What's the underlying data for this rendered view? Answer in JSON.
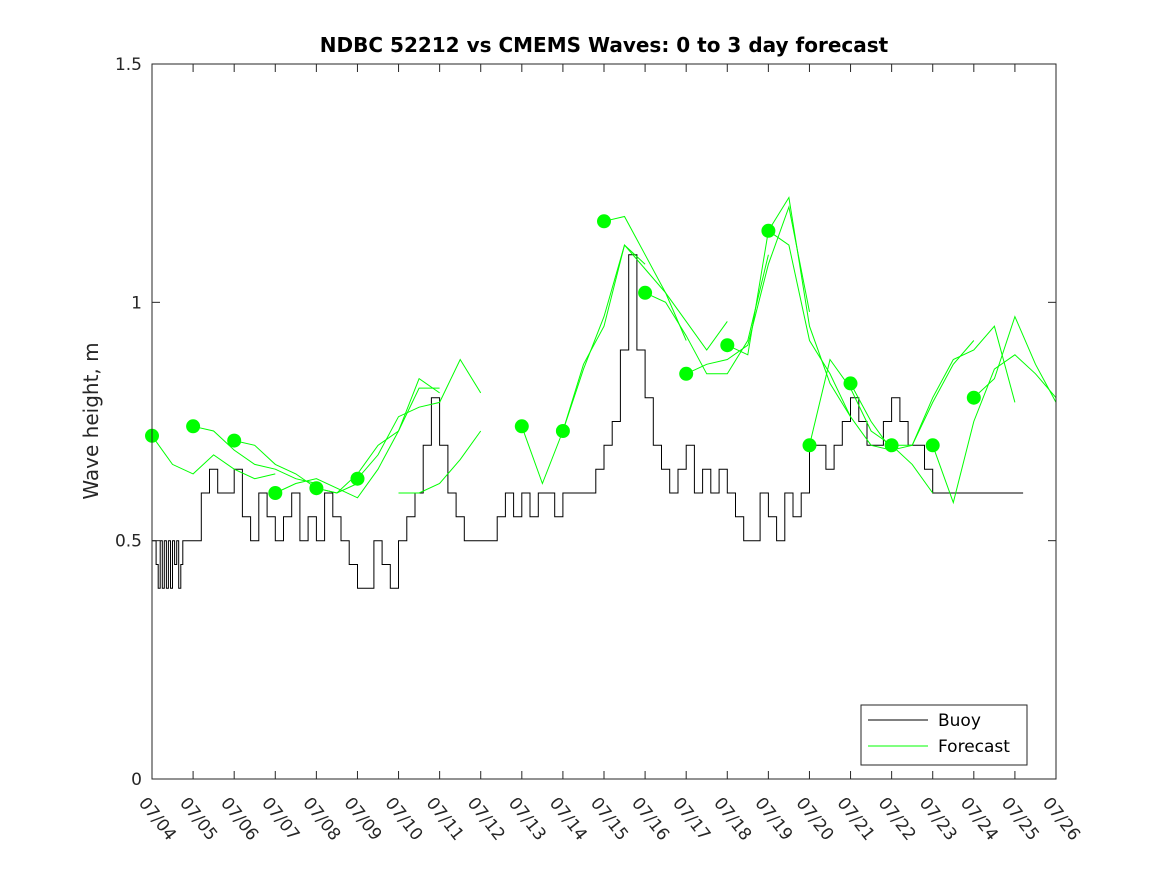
{
  "chart_data": {
    "type": "line",
    "title": "NDBC 52212 vs CMEMS Waves: 0 to 3 day forecast",
    "xlabel": "",
    "ylabel": "Wave height, m",
    "xlim": [
      "07/04",
      "07/26"
    ],
    "ylim": [
      0,
      1.5
    ],
    "x_tick_labels": [
      "07/04",
      "07/05",
      "07/06",
      "07/07",
      "07/08",
      "07/09",
      "07/10",
      "07/11",
      "07/12",
      "07/13",
      "07/14",
      "07/15",
      "07/16",
      "07/17",
      "07/18",
      "07/19",
      "07/20",
      "07/21",
      "07/22",
      "07/23",
      "07/24",
      "07/25",
      "07/26"
    ],
    "y_tick_labels": [
      "0",
      "0.5",
      "1",
      "1.5"
    ],
    "y_ticks": [
      0,
      0.5,
      1,
      1.5
    ],
    "grid": false,
    "legend_position": "bottom-right",
    "colors": {
      "buoy": "#000000",
      "forecast": "#00ff00"
    },
    "series": [
      {
        "name": "Buoy",
        "x_days": [
          0,
          0.1,
          0.15,
          0.2,
          0.25,
          0.3,
          0.35,
          0.4,
          0.45,
          0.5,
          0.55,
          0.6,
          0.65,
          0.7,
          0.75,
          0.8,
          1.0,
          1.2,
          1.4,
          1.6,
          1.8,
          2.0,
          2.2,
          2.4,
          2.6,
          2.8,
          3.0,
          3.2,
          3.4,
          3.6,
          3.8,
          4.0,
          4.2,
          4.4,
          4.6,
          4.8,
          5.0,
          5.2,
          5.4,
          5.6,
          5.8,
          6.0,
          6.2,
          6.4,
          6.6,
          6.8,
          7.0,
          7.2,
          7.4,
          7.6,
          7.8,
          8.0,
          8.2,
          8.4,
          8.6,
          8.8,
          9.0,
          9.2,
          9.4,
          9.6,
          9.8,
          10.0,
          10.2,
          10.4,
          10.6,
          10.8,
          11.0,
          11.2,
          11.4,
          11.6,
          11.8,
          12.0,
          12.2,
          12.4,
          12.6,
          12.8,
          13.0,
          13.2,
          13.4,
          13.6,
          13.8,
          14.0,
          14.2,
          14.4,
          14.6,
          14.8,
          15.0,
          15.2,
          15.4,
          15.6,
          15.8,
          16.0,
          16.2,
          16.4,
          16.6,
          16.8,
          17.0,
          17.2,
          17.4,
          17.6,
          17.8,
          18.0,
          18.2,
          18.4,
          18.6,
          18.8,
          19.0,
          19.2,
          19.4,
          19.6,
          19.8,
          20.0,
          20.2,
          20.4,
          20.6,
          20.8,
          21.0,
          21.2
        ],
        "values": [
          0.5,
          0.45,
          0.4,
          0.5,
          0.4,
          0.5,
          0.4,
          0.5,
          0.4,
          0.5,
          0.45,
          0.5,
          0.4,
          0.45,
          0.5,
          0.5,
          0.5,
          0.6,
          0.65,
          0.6,
          0.6,
          0.65,
          0.55,
          0.5,
          0.6,
          0.55,
          0.5,
          0.55,
          0.6,
          0.5,
          0.55,
          0.5,
          0.6,
          0.55,
          0.5,
          0.45,
          0.4,
          0.4,
          0.5,
          0.45,
          0.4,
          0.5,
          0.55,
          0.6,
          0.7,
          0.8,
          0.7,
          0.6,
          0.55,
          0.5,
          0.5,
          0.5,
          0.5,
          0.55,
          0.6,
          0.55,
          0.6,
          0.55,
          0.6,
          0.6,
          0.55,
          0.6,
          0.6,
          0.6,
          0.6,
          0.65,
          0.7,
          0.75,
          0.9,
          1.1,
          0.9,
          0.8,
          0.7,
          0.65,
          0.6,
          0.65,
          0.7,
          0.6,
          0.65,
          0.6,
          0.65,
          0.6,
          0.55,
          0.5,
          0.5,
          0.6,
          0.55,
          0.5,
          0.6,
          0.55,
          0.6,
          0.7,
          0.7,
          0.65,
          0.7,
          0.75,
          0.8,
          0.75,
          0.7,
          0.7,
          0.75,
          0.8,
          0.75,
          0.7,
          0.7,
          0.65,
          0.6,
          0.6,
          0.6,
          0.6,
          0.6,
          0.6,
          0.6,
          0.6,
          0.6,
          0.6,
          0.6,
          0.6
        ]
      },
      {
        "name": "Forecast",
        "runs": [
          {
            "x_days": [
              0,
              0.5,
              1,
              1.5,
              2,
              2.5,
              3
            ],
            "values": [
              0.72,
              0.66,
              0.64,
              0.68,
              0.65,
              0.63,
              0.64
            ]
          },
          {
            "x_days": [
              1,
              1.5,
              2,
              2.5,
              3,
              3.5,
              4
            ],
            "values": [
              0.74,
              0.73,
              0.69,
              0.66,
              0.65,
              0.63,
              0.62
            ]
          },
          {
            "x_days": [
              2,
              2.5,
              3,
              3.5,
              4,
              4.5,
              5
            ],
            "values": [
              0.71,
              0.7,
              0.66,
              0.64,
              0.61,
              0.6,
              0.62
            ]
          },
          {
            "x_days": [
              3,
              3.5,
              4,
              4.5,
              5,
              5.5,
              6,
              6.5,
              7
            ],
            "values": [
              0.6,
              0.62,
              0.63,
              0.61,
              0.59,
              0.65,
              0.73,
              0.84,
              0.81
            ]
          },
          {
            "x_days": [
              4,
              4.5,
              5,
              5.5,
              6,
              6.5,
              7
            ],
            "values": [
              0.61,
              0.6,
              0.64,
              0.7,
              0.73,
              0.82,
              0.82
            ]
          },
          {
            "x_days": [
              5,
              5.5,
              6,
              6.5,
              7,
              7.5,
              8
            ],
            "values": [
              0.63,
              0.68,
              0.76,
              0.78,
              0.79,
              0.88,
              0.81
            ]
          },
          {
            "x_days": [
              6,
              6.5,
              7,
              7.5,
              8
            ],
            "values": [
              0.6,
              0.6,
              0.62,
              0.67,
              0.73
            ]
          },
          {
            "x_days": [
              9,
              9.5,
              10,
              10.5,
              11,
              11.5,
              12
            ],
            "values": [
              0.74,
              0.62,
              0.73,
              0.87,
              0.95,
              1.12,
              1.08
            ]
          },
          {
            "x_days": [
              10,
              10.5,
              11,
              11.5,
              12,
              12.5,
              13
            ],
            "values": [
              0.73,
              0.86,
              0.97,
              1.12,
              1.07,
              1.02,
              0.92
            ]
          },
          {
            "x_days": [
              11,
              11.5,
              12,
              12.5,
              13,
              13.5,
              14
            ],
            "values": [
              1.17,
              1.18,
              1.1,
              1.02,
              0.96,
              0.9,
              0.96
            ]
          },
          {
            "x_days": [
              12,
              12.5,
              13,
              13.5,
              14,
              14.5,
              15
            ],
            "values": [
              1.02,
              1.0,
              0.93,
              0.85,
              0.85,
              0.92,
              1.1
            ]
          },
          {
            "x_days": [
              13,
              13.5,
              14,
              14.5,
              15,
              15.5,
              16
            ],
            "values": [
              0.85,
              0.87,
              0.88,
              0.91,
              1.08,
              1.2,
              0.98
            ]
          },
          {
            "x_days": [
              14,
              14.5,
              15,
              15.5,
              16,
              16.5,
              17
            ],
            "values": [
              0.91,
              0.89,
              1.15,
              1.12,
              0.92,
              0.85,
              0.76
            ]
          },
          {
            "x_days": [
              15,
              15.5,
              16,
              16.5,
              17,
              17.5,
              18
            ],
            "values": [
              1.15,
              1.22,
              0.95,
              0.83,
              0.76,
              0.7,
              0.69
            ]
          },
          {
            "x_days": [
              16,
              16.5,
              17,
              17.5,
              18,
              18.5,
              19
            ],
            "values": [
              0.7,
              0.88,
              0.82,
              0.73,
              0.7,
              0.66,
              0.6
            ]
          },
          {
            "x_days": [
              17,
              17.5,
              18,
              18.5,
              19,
              19.5,
              20
            ],
            "values": [
              0.83,
              0.75,
              0.69,
              0.7,
              0.79,
              0.87,
              0.92
            ]
          },
          {
            "x_days": [
              18,
              18.5,
              19,
              19.5,
              20,
              20.5,
              21
            ],
            "values": [
              0.7,
              0.7,
              0.8,
              0.88,
              0.9,
              0.95,
              0.79
            ]
          },
          {
            "x_days": [
              19,
              19.5,
              20,
              20.5,
              21,
              21.5,
              22
            ],
            "values": [
              0.7,
              0.58,
              0.75,
              0.86,
              0.89,
              0.85,
              0.8
            ]
          },
          {
            "x_days": [
              20,
              20.5,
              21,
              21.5,
              22
            ],
            "values": [
              0.8,
              0.84,
              0.97,
              0.87,
              0.79
            ]
          }
        ],
        "markers": {
          "x_days": [
            0,
            1,
            2,
            3,
            4,
            5,
            9,
            10,
            11,
            12,
            13,
            14,
            15,
            16,
            17,
            18,
            19,
            20
          ],
          "values": [
            0.72,
            0.74,
            0.71,
            0.6,
            0.61,
            0.63,
            0.74,
            0.73,
            1.17,
            1.02,
            0.85,
            0.91,
            1.15,
            0.7,
            0.83,
            0.7,
            0.7,
            0.8
          ]
        }
      }
    ]
  }
}
